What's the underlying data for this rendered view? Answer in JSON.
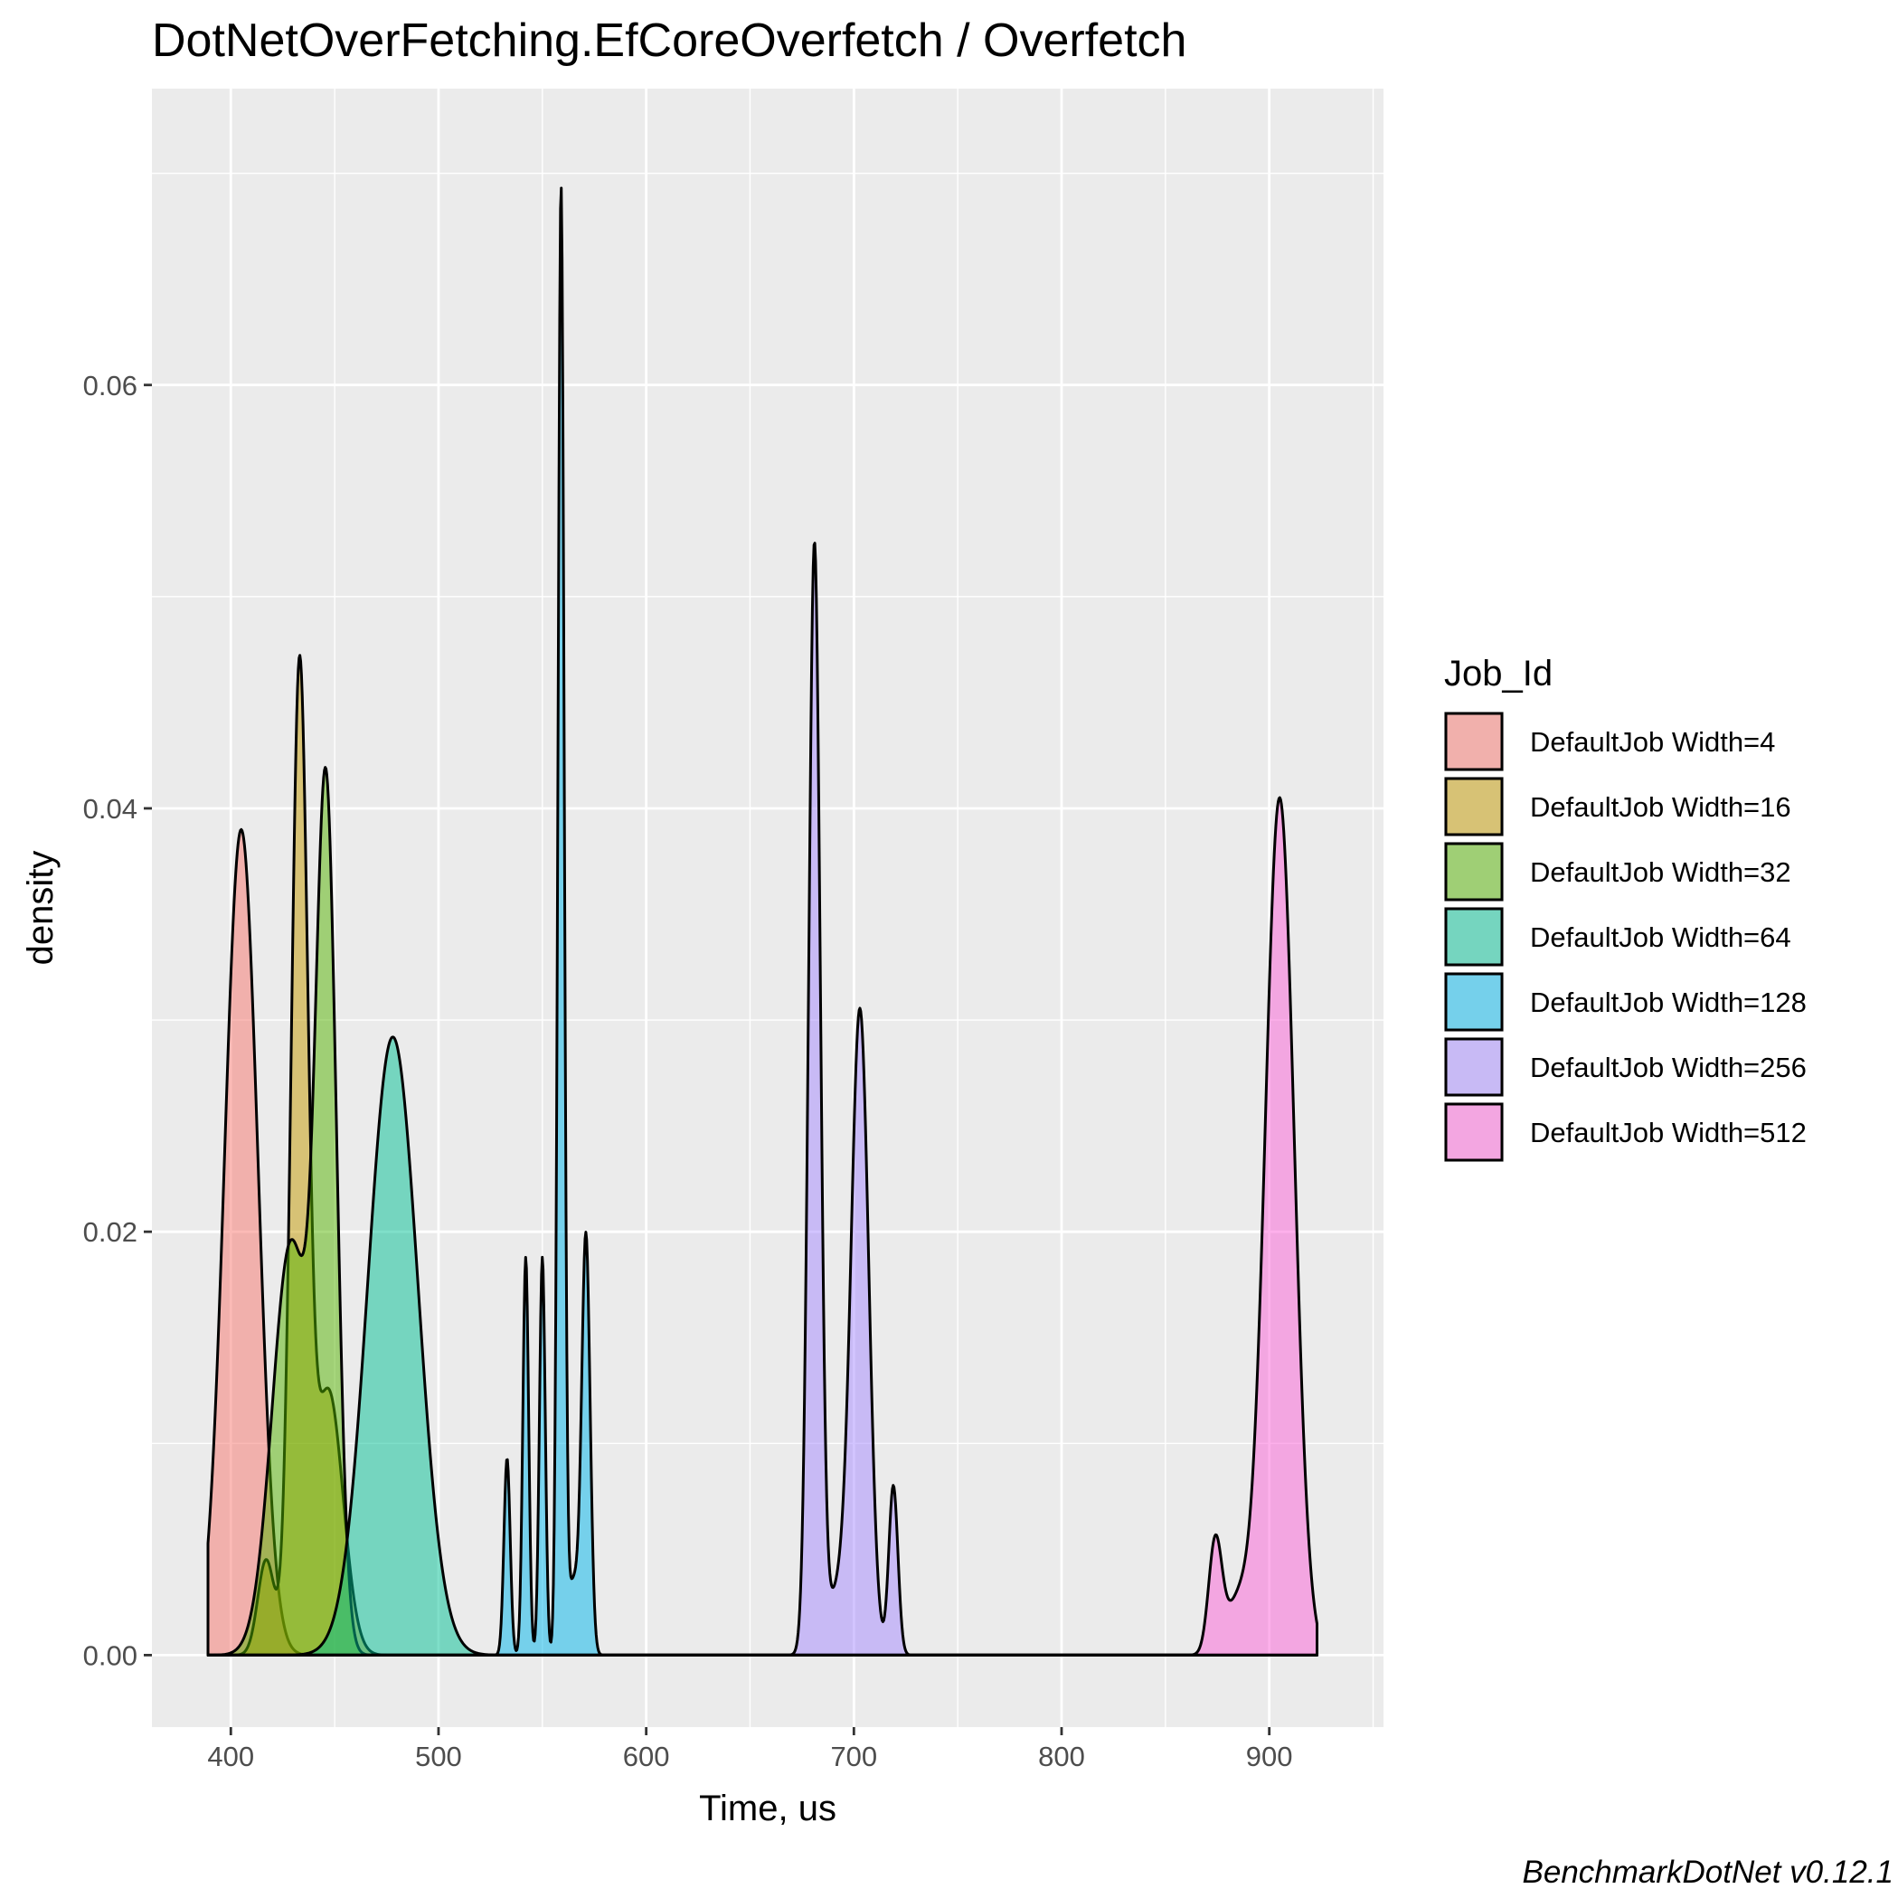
{
  "chart_data": {
    "type": "area",
    "subtype": "density",
    "title": "DotNetOverFetching.EfCoreOverfetch / Overfetch",
    "xlabel": "Time, us",
    "ylabel": "density",
    "caption": "BenchmarkDotNet v0.12.1",
    "xlim": [
      362,
      955
    ],
    "ylim": [
      -0.0034,
      0.074
    ],
    "x_ticks": [
      400,
      500,
      600,
      700,
      800,
      900
    ],
    "x_tick_labels": [
      "400",
      "500",
      "600",
      "700",
      "800",
      "900"
    ],
    "y_ticks": [
      0.0,
      0.02,
      0.04,
      0.06
    ],
    "y_tick_labels": [
      "0.00",
      "0.02",
      "0.04",
      "0.06"
    ],
    "grid": true,
    "background": "#ebebeb",
    "legend_title": "Job_Id",
    "legend_position": "right",
    "x_range_common": [
      389,
      923
    ],
    "series": [
      {
        "name": "DefaultJob Width=4",
        "color": "#F8766D",
        "components": [
          [
            405,
            8,
            0.039
          ]
        ],
        "tail": "left"
      },
      {
        "name": "DefaultJob Width=16",
        "color": "#C49A00",
        "components": [
          [
            433,
            4,
            0.0455
          ],
          [
            447,
            7,
            0.0125
          ],
          [
            417,
            4,
            0.0045
          ]
        ]
      },
      {
        "name": "DefaultJob Width=32",
        "color": "#53B400",
        "components": [
          [
            446,
            5,
            0.0385
          ],
          [
            429,
            9,
            0.0195
          ]
        ]
      },
      {
        "name": "DefaultJob Width=64",
        "color": "#00C094",
        "components": [
          [
            478,
            12,
            0.0292
          ]
        ]
      },
      {
        "name": "DefaultJob Width=128",
        "color": "#00B6EB",
        "components": [
          [
            559,
            1.5,
            0.069
          ],
          [
            533,
            1.5,
            0.0093
          ],
          [
            542,
            1.4,
            0.0188
          ],
          [
            550,
            1.4,
            0.0188
          ],
          [
            571,
            2.0,
            0.0195
          ],
          [
            565,
            3.0,
            0.0035
          ]
        ]
      },
      {
        "name": "DefaultJob Width=256",
        "color": "#A58AFF",
        "components": [
          [
            681,
            2.8,
            0.0522
          ],
          [
            703,
            4.2,
            0.0298
          ],
          [
            719,
            2.2,
            0.008
          ],
          [
            693,
            6,
            0.003
          ]
        ]
      },
      {
        "name": "DefaultJob Width=512",
        "color": "#FB61D7",
        "components": [
          [
            905,
            7,
            0.0405
          ],
          [
            874,
            3.2,
            0.0052
          ],
          [
            885,
            6,
            0.0025
          ]
        ],
        "tail": "right"
      }
    ]
  }
}
